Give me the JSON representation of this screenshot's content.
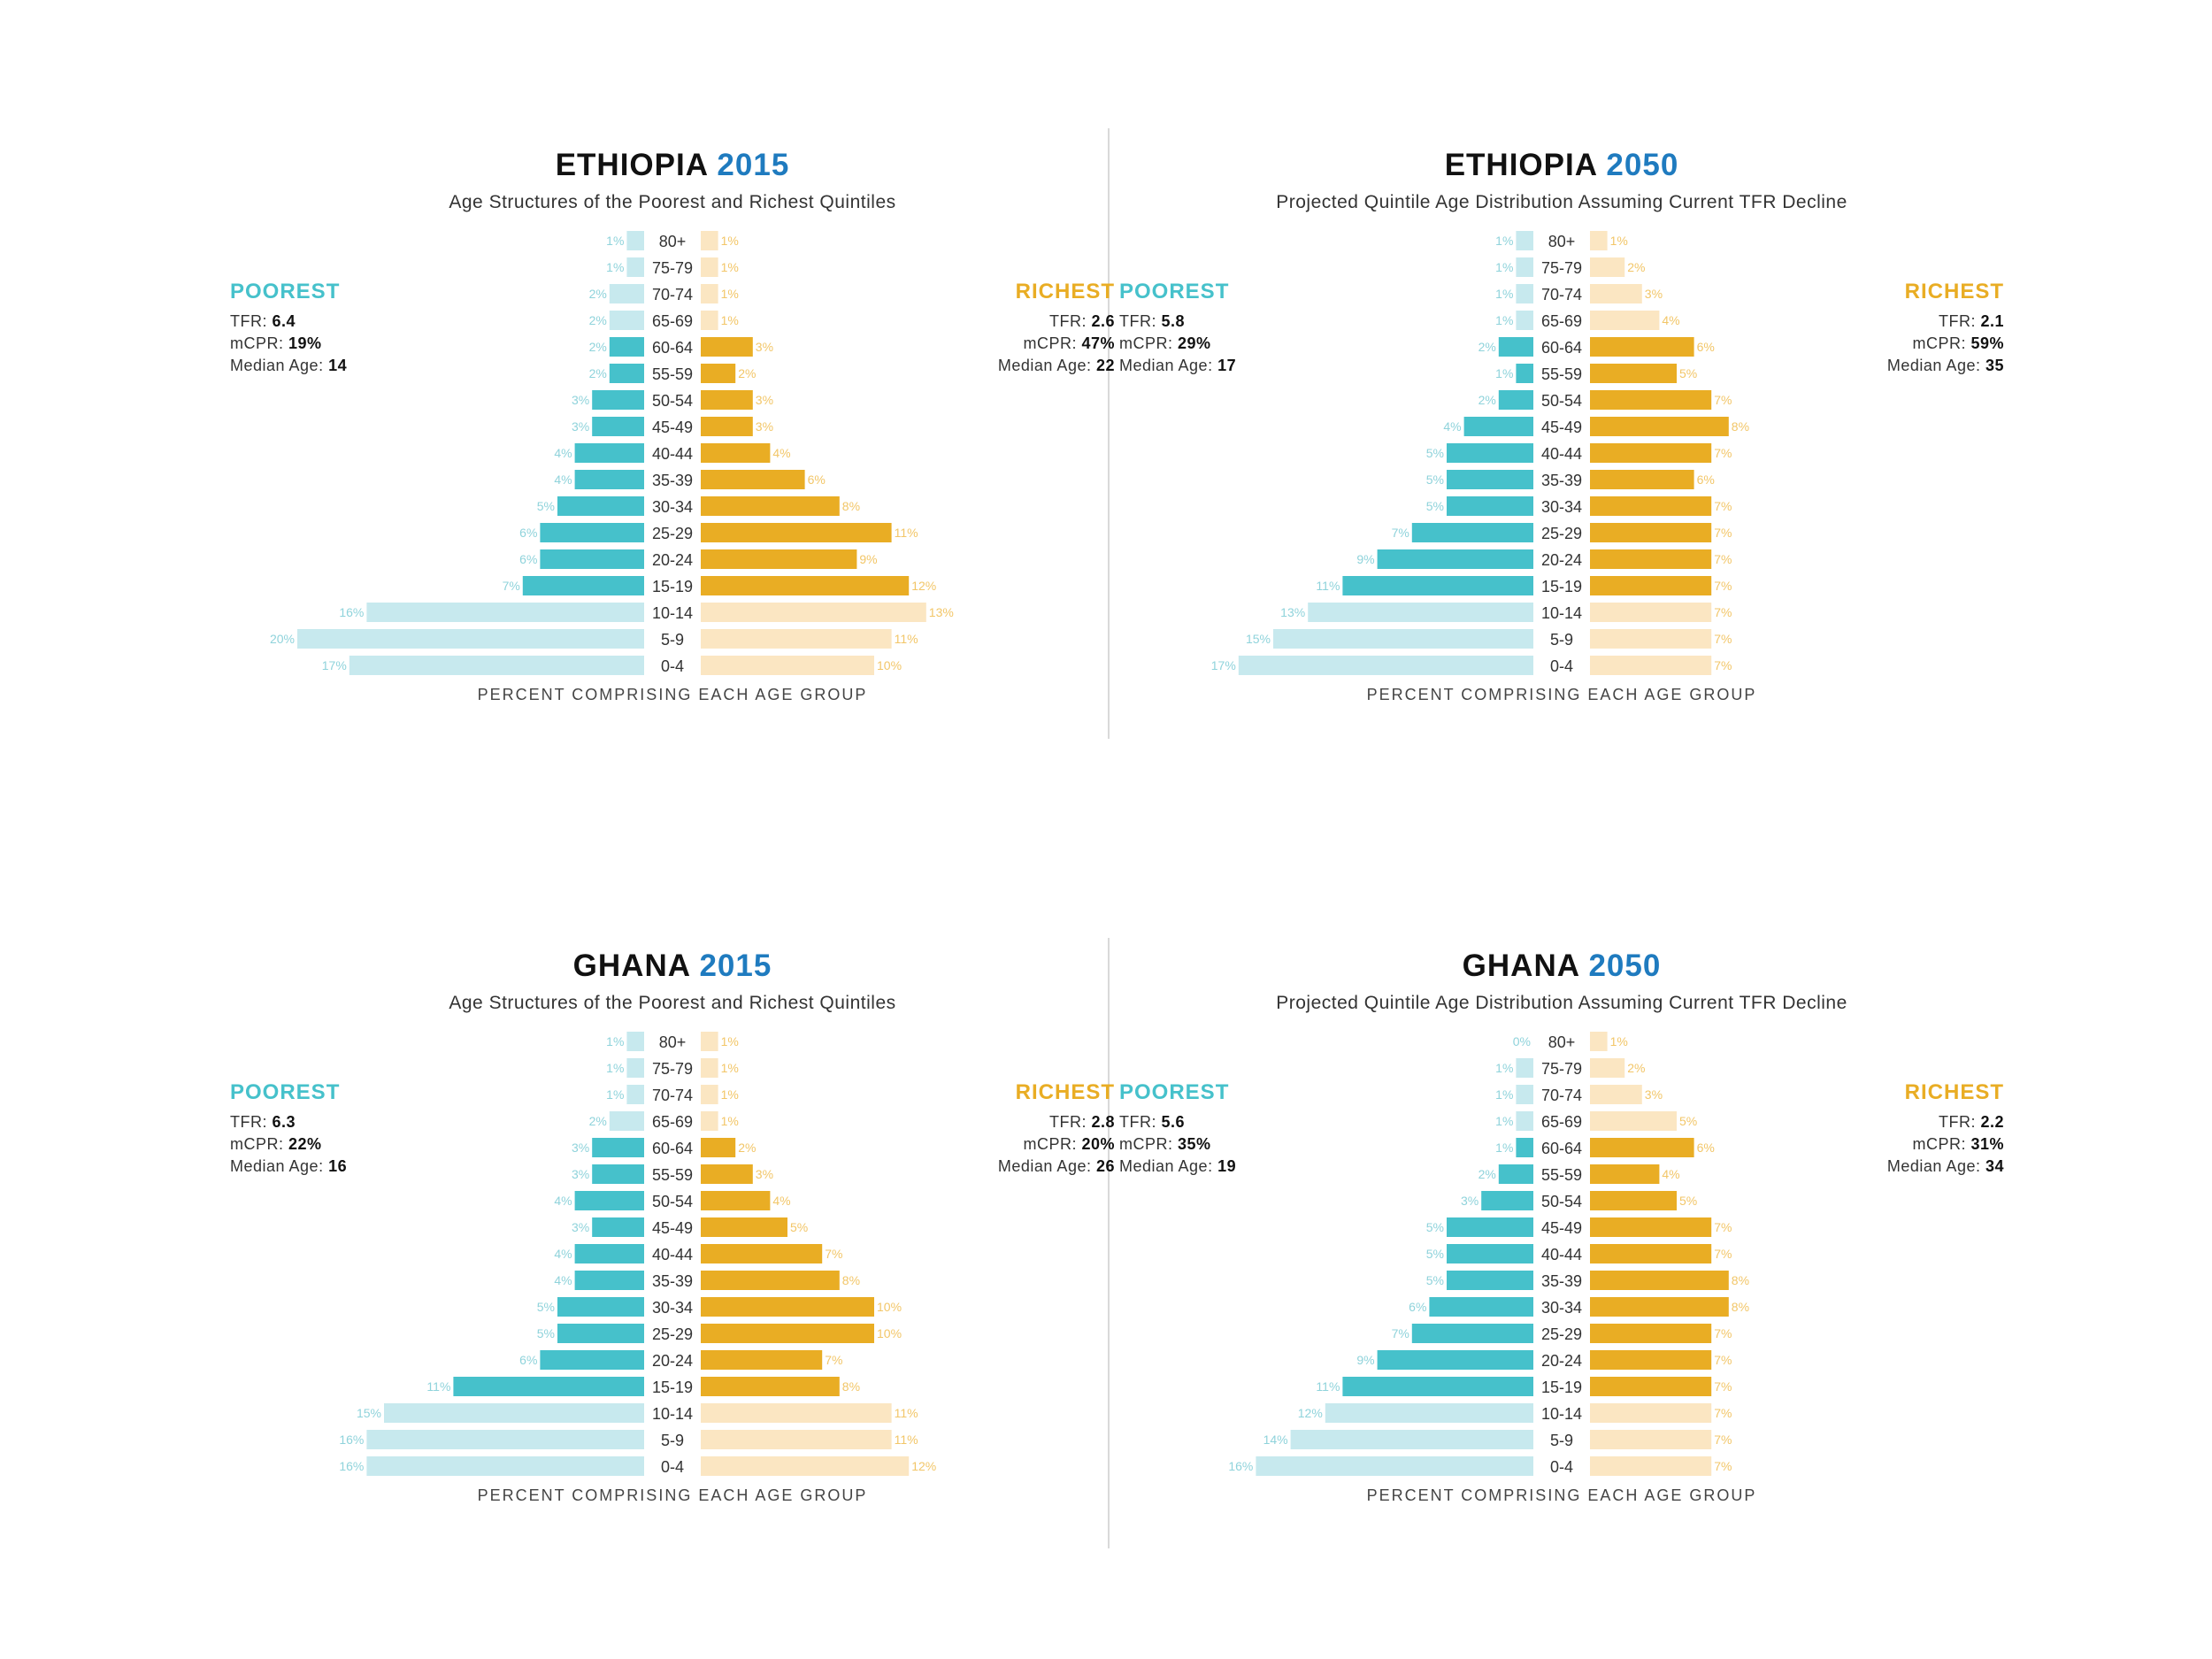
{
  "colors": {
    "poor_dark": "#46c1cb",
    "poor_light": "#c7e9ee",
    "rich_dark": "#e9ad24",
    "rich_light": "#fbe6c2",
    "poor_label": "#8fd3db",
    "rich_label": "#f2c668",
    "title_year": "#1f7bbf"
  },
  "axis_caption": "PERCENT COMPRISING EACH AGE GROUP",
  "chart_data": [
    {
      "type": "bar",
      "country": "ETHIOPIA",
      "year": "2015",
      "title": "ETHIOPIA 2015",
      "subtitle": "Age Structures of the Poorest and Richest Quintiles",
      "xlabel": "PERCENT COMPRISING EACH AGE GROUP",
      "categories": [
        "80+",
        "75-79",
        "70-74",
        "65-69",
        "60-64",
        "55-59",
        "50-54",
        "45-49",
        "40-44",
        "35-39",
        "30-34",
        "25-29",
        "20-24",
        "15-19",
        "10-14",
        "5-9",
        "0-4"
      ],
      "series": [
        {
          "name": "POOREST",
          "values": [
            1,
            1,
            2,
            2,
            2,
            2,
            3,
            3,
            4,
            4,
            5,
            6,
            6,
            7,
            16,
            20,
            17
          ],
          "labels": [
            "1%",
            "1%",
            "2%",
            "2%",
            "2%",
            "2%",
            "3%",
            "3%",
            "4%",
            "4%",
            "5%",
            "6%",
            "6%",
            "7%",
            "16%",
            "20%",
            "17%"
          ]
        },
        {
          "name": "RICHEST",
          "values": [
            1,
            1,
            1,
            1,
            3,
            2,
            3,
            3,
            4,
            6,
            8,
            11,
            9,
            12,
            13,
            11,
            10
          ],
          "labels": [
            "1%",
            "1%",
            "1%",
            "1%",
            "3%",
            "2%",
            "3%",
            "3%",
            "4%",
            "6%",
            "8%",
            "11%",
            "9%",
            "12%",
            "13%",
            "11%",
            "10%"
          ]
        }
      ],
      "poorest": {
        "head": "POOREST",
        "tfr_label": "TFR: ",
        "tfr": "6.4",
        "mcpr_label": "mCPR: ",
        "mcpr": "19%",
        "median_label": "Median Age: ",
        "median": "14"
      },
      "richest": {
        "head": "RICHEST",
        "tfr_label": "TFR: ",
        "tfr": "2.6",
        "mcpr_label": "mCPR: ",
        "mcpr": "47%",
        "median_label": "Median Age: ",
        "median": "22"
      }
    },
    {
      "type": "bar",
      "country": "ETHIOPIA",
      "year": "2050",
      "title": "ETHIOPIA 2050",
      "subtitle": "Projected Quintile Age Distribution Assuming Current TFR Decline",
      "xlabel": "PERCENT COMPRISING EACH AGE GROUP",
      "categories": [
        "80+",
        "75-79",
        "70-74",
        "65-69",
        "60-64",
        "55-59",
        "50-54",
        "45-49",
        "40-44",
        "35-39",
        "30-34",
        "25-29",
        "20-24",
        "15-19",
        "10-14",
        "5-9",
        "0-4"
      ],
      "series": [
        {
          "name": "POOREST",
          "values": [
            1,
            1,
            1,
            1,
            2,
            1,
            2,
            4,
            5,
            5,
            5,
            7,
            9,
            11,
            13,
            15,
            17
          ],
          "labels": [
            "1%",
            "1%",
            "1%",
            "1%",
            "2%",
            "1%",
            "2%",
            "4%",
            "5%",
            "5%",
            "5%",
            "7%",
            "9%",
            "11%",
            "13%",
            "15%",
            "17%"
          ]
        },
        {
          "name": "RICHEST",
          "values": [
            1,
            2,
            3,
            4,
            6,
            5,
            7,
            8,
            7,
            6,
            7,
            7,
            7,
            7,
            7,
            7,
            7
          ],
          "labels": [
            "1%",
            "2%",
            "3%",
            "4%",
            "6%",
            "5%",
            "7%",
            "8%",
            "7%",
            "6%",
            "7%",
            "7%",
            "7%",
            "7%",
            "7%",
            "7%",
            "7%"
          ]
        }
      ],
      "poorest": {
        "head": "POOREST",
        "tfr_label": "TFR: ",
        "tfr": "5.8",
        "mcpr_label": "mCPR: ",
        "mcpr": "29%",
        "median_label": "Median Age: ",
        "median": "17"
      },
      "richest": {
        "head": "RICHEST",
        "tfr_label": "TFR: ",
        "tfr": "2.1",
        "mcpr_label": "mCPR: ",
        "mcpr": "59%",
        "median_label": "Median Age: ",
        "median": "35"
      }
    },
    {
      "type": "bar",
      "country": "GHANA",
      "year": "2015",
      "title": "GHANA 2015",
      "subtitle": "Age Structures of the Poorest and Richest Quintiles",
      "xlabel": "PERCENT COMPRISING EACH AGE GROUP",
      "categories": [
        "80+",
        "75-79",
        "70-74",
        "65-69",
        "60-64",
        "55-59",
        "50-54",
        "45-49",
        "40-44",
        "35-39",
        "30-34",
        "25-29",
        "20-24",
        "15-19",
        "10-14",
        "5-9",
        "0-4"
      ],
      "series": [
        {
          "name": "POOREST",
          "values": [
            1,
            1,
            1,
            2,
            3,
            3,
            4,
            3,
            4,
            4,
            5,
            5,
            6,
            11,
            15,
            16,
            16
          ],
          "labels": [
            "1%",
            "1%",
            "1%",
            "2%",
            "3%",
            "3%",
            "4%",
            "3%",
            "4%",
            "4%",
            "5%",
            "5%",
            "6%",
            "11%",
            "15%",
            "16%",
            "16%"
          ]
        },
        {
          "name": "RICHEST",
          "values": [
            1,
            1,
            1,
            1,
            2,
            3,
            4,
            5,
            7,
            8,
            10,
            10,
            7,
            8,
            11,
            11,
            12
          ],
          "labels": [
            "1%",
            "1%",
            "1%",
            "1%",
            "2%",
            "3%",
            "4%",
            "5%",
            "7%",
            "8%",
            "10%",
            "10%",
            "7%",
            "8%",
            "11%",
            "11%",
            "12%"
          ]
        }
      ],
      "poorest": {
        "head": "POOREST",
        "tfr_label": "TFR: ",
        "tfr": "6.3",
        "mcpr_label": "mCPR: ",
        "mcpr": "22%",
        "median_label": "Median Age: ",
        "median": "16"
      },
      "richest": {
        "head": "RICHEST",
        "tfr_label": "TFR: ",
        "tfr": "2.8",
        "mcpr_label": "mCPR: ",
        "mcpr": "20%",
        "median_label": "Median Age: ",
        "median": "26"
      }
    },
    {
      "type": "bar",
      "country": "GHANA",
      "year": "2050",
      "title": "GHANA 2050",
      "subtitle": "Projected Quintile Age Distribution Assuming Current TFR Decline",
      "xlabel": "PERCENT COMPRISING EACH AGE GROUP",
      "categories": [
        "80+",
        "75-79",
        "70-74",
        "65-69",
        "60-64",
        "55-59",
        "50-54",
        "45-49",
        "40-44",
        "35-39",
        "30-34",
        "25-29",
        "20-24",
        "15-19",
        "10-14",
        "5-9",
        "0-4"
      ],
      "series": [
        {
          "name": "POOREST",
          "values": [
            0,
            1,
            1,
            1,
            1,
            2,
            3,
            5,
            5,
            5,
            6,
            7,
            9,
            11,
            12,
            14,
            16
          ],
          "labels": [
            "0%",
            "1%",
            "1%",
            "1%",
            "1%",
            "2%",
            "3%",
            "5%",
            "5%",
            "5%",
            "6%",
            "7%",
            "9%",
            "11%",
            "12%",
            "14%",
            "16%"
          ]
        },
        {
          "name": "RICHEST",
          "values": [
            1,
            2,
            3,
            5,
            6,
            4,
            5,
            7,
            7,
            8,
            8,
            7,
            7,
            7,
            7,
            7,
            7
          ],
          "labels": [
            "1%",
            "2%",
            "3%",
            "5%",
            "6%",
            "4%",
            "5%",
            "7%",
            "7%",
            "8%",
            "8%",
            "7%",
            "7%",
            "7%",
            "7%",
            "7%",
            "7%"
          ]
        }
      ],
      "poorest": {
        "head": "POOREST",
        "tfr_label": "TFR: ",
        "tfr": "5.6",
        "mcpr_label": "mCPR: ",
        "mcpr": "35%",
        "median_label": "Median Age: ",
        "median": "19"
      },
      "richest": {
        "head": "RICHEST",
        "tfr_label": "TFR: ",
        "tfr": "2.2",
        "mcpr_label": "mCPR: ",
        "mcpr": "31%",
        "median_label": "Median Age: ",
        "median": "34"
      }
    }
  ]
}
